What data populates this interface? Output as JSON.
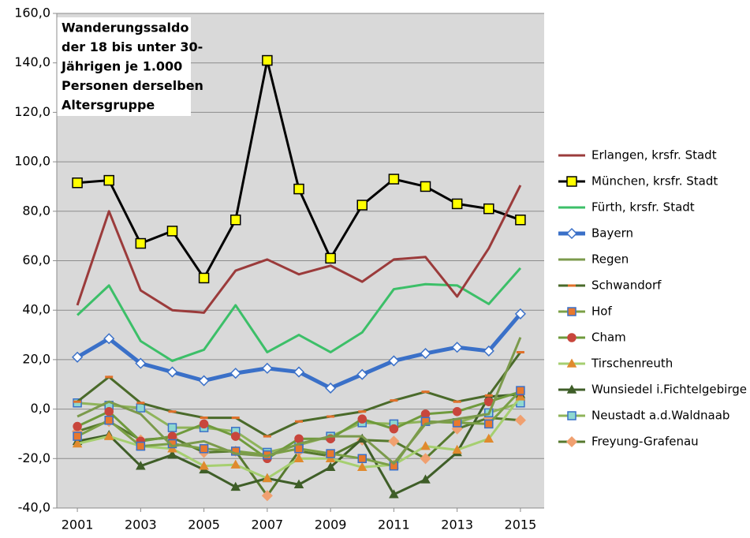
{
  "chart_data": {
    "type": "line",
    "title": [
      "Wanderungssaldo",
      "der 18 bis unter 30-",
      "Jährigen je 1.000",
      "Personen derselben",
      "Altersgruppe"
    ],
    "x": [
      2001,
      2002,
      2003,
      2004,
      2005,
      2006,
      2007,
      2008,
      2009,
      2010,
      2011,
      2012,
      2013,
      2014,
      2015
    ],
    "xlim": [
      2000.35,
      2015.75
    ],
    "xticks": [
      2001,
      2003,
      2005,
      2007,
      2009,
      2011,
      2013,
      2015
    ],
    "ylim": [
      -40,
      160
    ],
    "yticks": [
      {
        "value": -40,
        "label": "-40,0"
      },
      {
        "value": -20,
        "label": "-20,0"
      },
      {
        "value": 0,
        "label": "0,0"
      },
      {
        "value": 20,
        "label": "20,0"
      },
      {
        "value": 40,
        "label": "40,0"
      },
      {
        "value": 60,
        "label": "60,0"
      },
      {
        "value": 80,
        "label": "80,0"
      },
      {
        "value": 100,
        "label": "100,0"
      },
      {
        "value": 120,
        "label": "120,0"
      },
      {
        "value": 140,
        "label": "140,0"
      },
      {
        "value": 160,
        "label": "160,0"
      }
    ],
    "grid": true,
    "legend": "right",
    "series": [
      {
        "name": "Erlangen, krsfr. Stadt",
        "color": "#9b3b3b",
        "width": 3,
        "marker": "none",
        "values": [
          42,
          80,
          48,
          40,
          39,
          56,
          60.5,
          54.5,
          58,
          51.5,
          60.5,
          61.5,
          45.5,
          65,
          90.5
        ]
      },
      {
        "name": "München, krsfr. Stadt",
        "color": "#000000",
        "width": 3,
        "marker": "square",
        "marker_fill": "#ffff00",
        "values": [
          91.5,
          92.5,
          67,
          72,
          53,
          76.5,
          141,
          89,
          61,
          82.5,
          93,
          90,
          83,
          81,
          76.5
        ]
      },
      {
        "name": "Fürth, krsfr. Stadt",
        "color": "#3cbf68",
        "width": 3,
        "marker": "none",
        "values": [
          38,
          50,
          27.5,
          19.5,
          24,
          42,
          23,
          30,
          23,
          31,
          48.5,
          50.5,
          50,
          42.5,
          57
        ]
      },
      {
        "name": "Bayern",
        "color": "#3a70c8",
        "width": 5,
        "marker": "diamond",
        "marker_fill": "#ffffff",
        "values": [
          21,
          28.5,
          18.5,
          15,
          11.5,
          14.5,
          16.5,
          15,
          8.5,
          14,
          19.5,
          22.5,
          25,
          23.5,
          38.5
        ]
      },
      {
        "name": "Regen",
        "color": "#7b9a4c",
        "width": 3,
        "marker": "none",
        "values": [
          -3,
          3,
          -2,
          -15,
          -13,
          -18,
          -19,
          -14,
          -11,
          -11,
          -22,
          -6,
          -4,
          -2,
          29
        ]
      },
      {
        "name": "Schwandorf",
        "color": "#4a6a2a",
        "width": 3,
        "marker": "dash",
        "marker_fill": "#e0702a",
        "values": [
          3,
          13,
          2.5,
          -1,
          -3.5,
          -3.5,
          -11,
          -5,
          -3,
          -1,
          3.5,
          7,
          3,
          5.5,
          23
        ]
      },
      {
        "name": "Hof",
        "color": "#7ba046",
        "width": 3,
        "marker": "square",
        "marker_fill": "#e8782e",
        "values": [
          -11,
          -4.5,
          -15,
          -14,
          -16,
          -17,
          -18.5,
          -16,
          -18,
          -20,
          -23,
          -5,
          -5.5,
          -6,
          7.5
        ]
      },
      {
        "name": "Cham",
        "color": "#6f9a3c",
        "width": 3,
        "marker": "circle",
        "marker_fill": "#c8463c",
        "values": [
          -7,
          -1,
          -13,
          -11,
          -6,
          -11,
          -20,
          -12,
          -12,
          -4,
          -8,
          -2,
          -1,
          3,
          7
        ]
      },
      {
        "name": "Tirschenreuth",
        "color": "#a6cf70",
        "width": 3,
        "marker": "triangle",
        "marker_fill": "#e08a2e",
        "values": [
          -14,
          -11,
          -15,
          -16,
          -23,
          -22.5,
          -28,
          -20,
          -20,
          -23.5,
          -22.5,
          -15,
          -16.5,
          -12,
          5
        ]
      },
      {
        "name": "Wunsiedel i.Fichtelgebirge",
        "color": "#3f5e28",
        "width": 3,
        "marker": "triangle",
        "marker_fill": "#3f5e28",
        "values": [
          -13,
          -10.5,
          -23,
          -18.5,
          -24.5,
          -31.5,
          -28,
          -30.5,
          -23.5,
          -12,
          -34.5,
          -28.5,
          -17.5,
          5,
          6
        ]
      },
      {
        "name": "Neustadt a.d.Waldnaab",
        "color": "#8fb45a",
        "width": 3,
        "marker": "square",
        "marker_fill": "#8fd8d0",
        "values": [
          2.5,
          1.5,
          0.5,
          -7.5,
          -7.5,
          -9,
          -17.5,
          -14.5,
          -11,
          -5.5,
          -6,
          -5,
          -5.5,
          -1.5,
          2.5
        ]
      },
      {
        "name": "Freyung-Grafenau",
        "color": "#56792e",
        "width": 3,
        "marker": "diamond",
        "marker_fill": "#f0a070",
        "values": [
          -9,
          -5,
          -12.5,
          -11.5,
          -17.5,
          -17,
          -35,
          -17,
          -19,
          -12.5,
          -13,
          -20,
          -8,
          -3.5,
          -4.5
        ]
      }
    ]
  }
}
